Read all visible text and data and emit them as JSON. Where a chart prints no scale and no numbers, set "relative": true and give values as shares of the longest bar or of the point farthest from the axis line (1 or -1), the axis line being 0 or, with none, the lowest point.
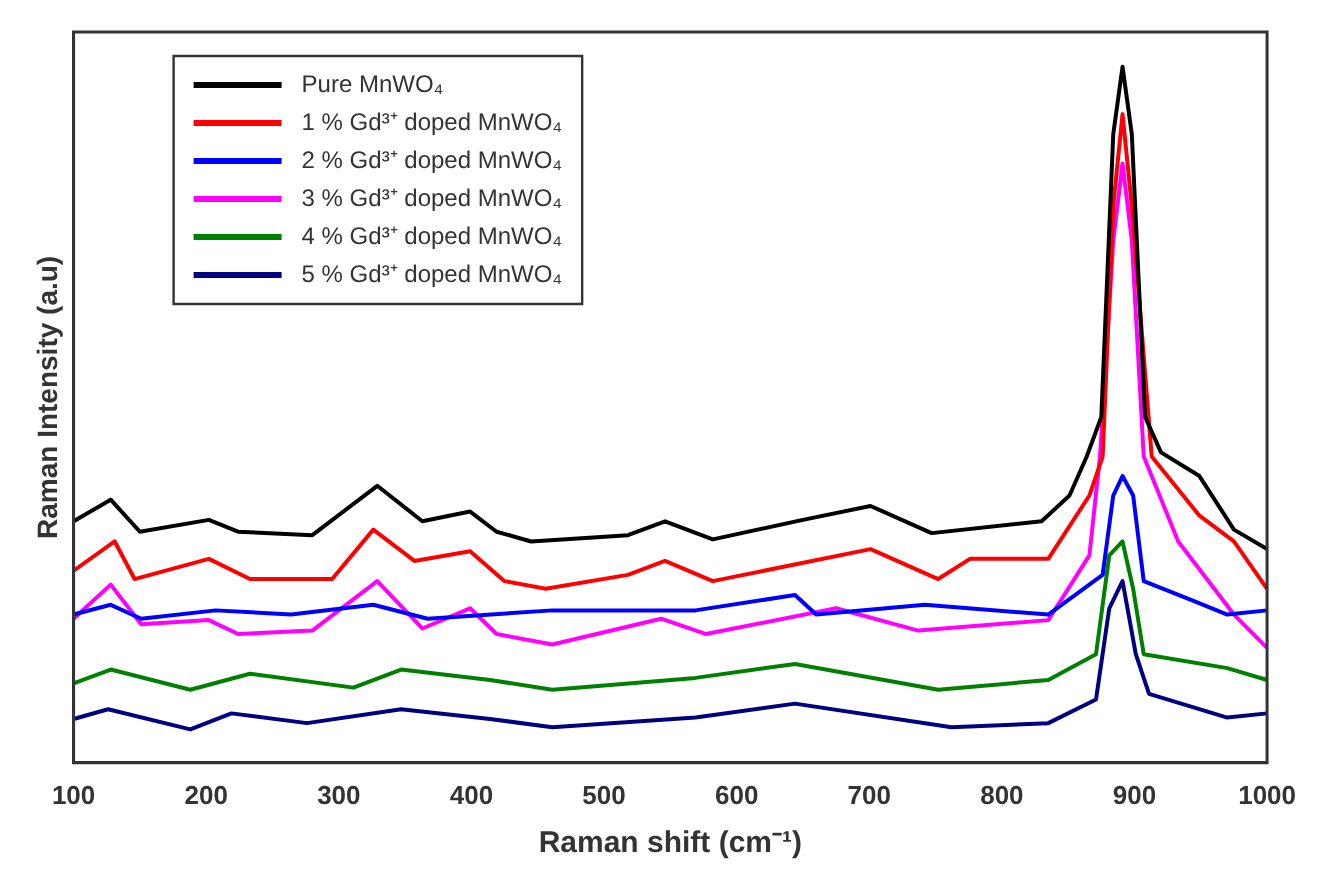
{
  "chart_data": {
    "type": "line",
    "relative": true,
    "xlabel": "Raman shift (cm⁻¹)",
    "ylabel": "Raman Intensity (a.u)",
    "xlim": [
      100,
      1000
    ],
    "xticks": [
      100,
      200,
      300,
      400,
      500,
      600,
      700,
      800,
      900,
      1000
    ],
    "grid": false,
    "legend": "top left",
    "marker": "none",
    "line_style": "solid",
    "series": [
      {
        "name": "Pure MnWO₄",
        "color": "#000000",
        "x": [
          100,
          128,
          150,
          202,
          224,
          280,
          329,
          363,
          399,
          419,
          445,
          518,
          546,
          582,
          650,
          701,
          747,
          830,
          851,
          864,
          875,
          884,
          891,
          898,
          908,
          920,
          949,
          975,
          1000
        ],
        "values": [
          0.347,
          0.378,
          0.332,
          0.349,
          0.332,
          0.327,
          0.398,
          0.347,
          0.361,
          0.332,
          0.318,
          0.327,
          0.347,
          0.321,
          0.349,
          0.369,
          0.33,
          0.347,
          0.384,
          0.44,
          0.497,
          0.903,
          1,
          0.903,
          0.497,
          0.446,
          0.412,
          0.335,
          0.307
        ]
      },
      {
        "name": "1 % Gd³⁺ doped MnWO₄",
        "color": "#ff0000",
        "x": [
          100,
          131,
          146,
          202,
          233,
          295,
          326,
          357,
          399,
          425,
          456,
          518,
          546,
          582,
          701,
          752,
          776,
          835,
          866,
          876,
          884,
          891,
          898,
          913,
          949,
          975,
          1000
        ],
        "values": [
          0.276,
          0.318,
          0.264,
          0.293,
          0.264,
          0.264,
          0.335,
          0.29,
          0.304,
          0.261,
          0.25,
          0.27,
          0.29,
          0.261,
          0.307,
          0.264,
          0.293,
          0.293,
          0.384,
          0.44,
          0.8,
          0.932,
          0.8,
          0.44,
          0.355,
          0.318,
          0.25
        ]
      },
      {
        "name": "2 % Gd³⁺ doped MnWO₄",
        "color": "#0000ff",
        "x": [
          100,
          128,
          151,
          207,
          264,
          326,
          367,
          461,
          569,
          644,
          660,
          742,
          835,
          876,
          884,
          891,
          899,
          907,
          944,
          970,
          1000
        ],
        "values": [
          0.213,
          0.227,
          0.207,
          0.219,
          0.213,
          0.227,
          0.207,
          0.219,
          0.219,
          0.241,
          0.213,
          0.227,
          0.213,
          0.27,
          0.384,
          0.412,
          0.384,
          0.261,
          0.233,
          0.213,
          0.219
        ]
      },
      {
        "name": "3 % Gd³⁺ doped MnWO₄",
        "color": "#ff00ff",
        "x": [
          100,
          128,
          151,
          202,
          224,
          280,
          329,
          363,
          399,
          419,
          461,
          543,
          577,
          675,
          737,
          835,
          866,
          874,
          884,
          891,
          898,
          907,
          933,
          975,
          1000
        ],
        "values": [
          0.207,
          0.256,
          0.199,
          0.205,
          0.185,
          0.19,
          0.261,
          0.193,
          0.222,
          0.185,
          0.17,
          0.207,
          0.185,
          0.222,
          0.19,
          0.205,
          0.298,
          0.44,
          0.75,
          0.861,
          0.75,
          0.44,
          0.318,
          0.213,
          0.165
        ]
      },
      {
        "name": "4 % Gd³⁺ doped MnWO₄",
        "color": "#008000",
        "x": [
          100,
          128,
          188,
          233,
          311,
          347,
          414,
          461,
          569,
          644,
          752,
          835,
          871,
          881,
          891,
          899,
          907,
          970,
          1000
        ],
        "values": [
          0.114,
          0.134,
          0.105,
          0.128,
          0.108,
          0.134,
          0.119,
          0.105,
          0.122,
          0.142,
          0.105,
          0.119,
          0.156,
          0.298,
          0.318,
          0.25,
          0.156,
          0.136,
          0.119
        ]
      },
      {
        "name": "5 % Gd³⁺ doped MnWO₄",
        "color": "#000080",
        "x": [
          100,
          126,
          188,
          219,
          276,
          347,
          414,
          461,
          569,
          644,
          762,
          835,
          871,
          881,
          891,
          901,
          911,
          970,
          1000
        ],
        "values": [
          0.063,
          0.077,
          0.048,
          0.071,
          0.057,
          0.077,
          0.063,
          0.051,
          0.065,
          0.085,
          0.051,
          0.057,
          0.091,
          0.222,
          0.261,
          0.156,
          0.099,
          0.065,
          0.071
        ]
      }
    ]
  }
}
